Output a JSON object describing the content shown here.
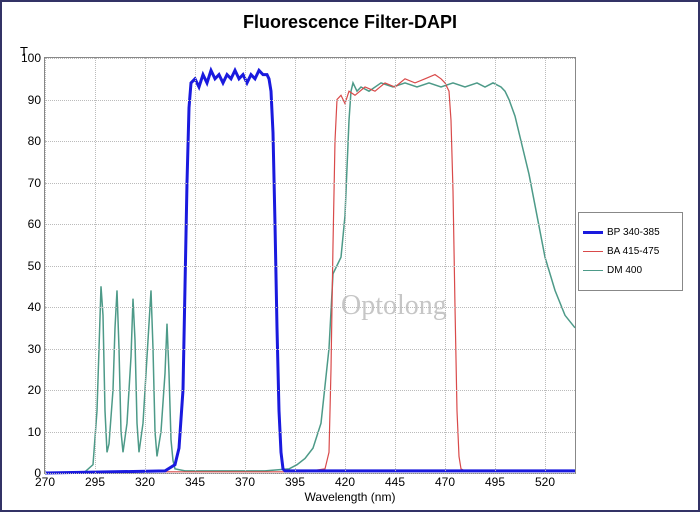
{
  "title": "Fluorescence Filter-DAPI",
  "y_axis_title": "T",
  "x_axis_title": "Wavelength (nm)",
  "watermark": "Optolong",
  "chart_type": "line",
  "background_color": "#ffffff",
  "grid_color": "#bbbbbb",
  "border_color": "#333366",
  "title_fontsize": 18,
  "label_fontsize": 12,
  "x": {
    "min": 270,
    "max": 535,
    "ticks": [
      270,
      295,
      320,
      345,
      370,
      395,
      420,
      445,
      470,
      495,
      520
    ]
  },
  "y": {
    "min": 0,
    "max": 100,
    "ticks": [
      0,
      10,
      20,
      30,
      40,
      50,
      60,
      70,
      80,
      90,
      100
    ]
  },
  "legend": [
    {
      "label": "BP 340-385",
      "color": "#1a1ade",
      "width": 3
    },
    {
      "label": "BA 415-475",
      "color": "#d94a4a",
      "width": 1.2
    },
    {
      "label": "DM 400",
      "color": "#4d9a88",
      "width": 1.5
    }
  ],
  "series": {
    "bp": {
      "color": "#1a1ade",
      "width": 3,
      "points": [
        [
          270,
          0
        ],
        [
          330,
          0.5
        ],
        [
          335,
          2
        ],
        [
          337,
          6
        ],
        [
          339,
          20
        ],
        [
          340,
          45
        ],
        [
          341,
          70
        ],
        [
          342,
          88
        ],
        [
          343,
          94
        ],
        [
          345,
          95
        ],
        [
          347,
          93
        ],
        [
          349,
          96
        ],
        [
          351,
          94
        ],
        [
          353,
          97
        ],
        [
          355,
          95
        ],
        [
          357,
          96
        ],
        [
          359,
          94
        ],
        [
          361,
          96
        ],
        [
          363,
          95
        ],
        [
          365,
          97
        ],
        [
          367,
          95
        ],
        [
          369,
          96
        ],
        [
          371,
          94
        ],
        [
          373,
          96
        ],
        [
          375,
          95
        ],
        [
          377,
          97
        ],
        [
          379,
          96
        ],
        [
          381,
          96
        ],
        [
          382,
          95
        ],
        [
          383,
          92
        ],
        [
          384,
          82
        ],
        [
          385,
          60
        ],
        [
          386,
          35
        ],
        [
          387,
          15
        ],
        [
          388,
          5
        ],
        [
          389,
          1
        ],
        [
          390,
          0.5
        ],
        [
          420,
          0.5
        ],
        [
          480,
          0.5
        ],
        [
          535,
          0.5
        ]
      ]
    },
    "ba": {
      "color": "#d94a4a",
      "width": 1.2,
      "points": [
        [
          270,
          0
        ],
        [
          300,
          0.3
        ],
        [
          400,
          0.3
        ],
        [
          410,
          1
        ],
        [
          412,
          5
        ],
        [
          413,
          25
        ],
        [
          414,
          55
        ],
        [
          415,
          80
        ],
        [
          416,
          90
        ],
        [
          418,
          91
        ],
        [
          420,
          89
        ],
        [
          422,
          92
        ],
        [
          425,
          91
        ],
        [
          430,
          93
        ],
        [
          435,
          92
        ],
        [
          440,
          94
        ],
        [
          445,
          93
        ],
        [
          450,
          95
        ],
        [
          455,
          94
        ],
        [
          460,
          95
        ],
        [
          465,
          96
        ],
        [
          468,
          95
        ],
        [
          470,
          94
        ],
        [
          472,
          92
        ],
        [
          473,
          85
        ],
        [
          474,
          68
        ],
        [
          475,
          40
        ],
        [
          476,
          15
        ],
        [
          477,
          4
        ],
        [
          478,
          1
        ],
        [
          480,
          0.5
        ],
        [
          535,
          0.5
        ]
      ]
    },
    "dm": {
      "color": "#4d9a88",
      "width": 1.5,
      "points": [
        [
          270,
          0
        ],
        [
          290,
          0.3
        ],
        [
          294,
          2
        ],
        [
          296,
          15
        ],
        [
          297,
          30
        ],
        [
          298,
          45
        ],
        [
          299,
          38
        ],
        [
          300,
          15
        ],
        [
          301,
          5
        ],
        [
          302,
          7
        ],
        [
          304,
          20
        ],
        [
          305,
          35
        ],
        [
          306,
          44
        ],
        [
          307,
          30
        ],
        [
          308,
          10
        ],
        [
          309,
          5
        ],
        [
          311,
          12
        ],
        [
          313,
          28
        ],
        [
          314,
          42
        ],
        [
          315,
          32
        ],
        [
          316,
          12
        ],
        [
          317,
          5
        ],
        [
          319,
          12
        ],
        [
          321,
          28
        ],
        [
          323,
          44
        ],
        [
          324,
          30
        ],
        [
          325,
          10
        ],
        [
          326,
          4
        ],
        [
          328,
          10
        ],
        [
          330,
          24
        ],
        [
          331,
          36
        ],
        [
          332,
          24
        ],
        [
          333,
          8
        ],
        [
          334,
          3
        ],
        [
          335,
          1
        ],
        [
          340,
          0.5
        ],
        [
          380,
          0.5
        ],
        [
          392,
          1
        ],
        [
          396,
          2
        ],
        [
          400,
          3.5
        ],
        [
          404,
          6
        ],
        [
          408,
          12
        ],
        [
          412,
          30
        ],
        [
          414,
          48
        ],
        [
          416,
          50
        ],
        [
          418,
          52
        ],
        [
          420,
          62
        ],
        [
          422,
          85
        ],
        [
          423,
          92
        ],
        [
          424,
          94
        ],
        [
          426,
          92
        ],
        [
          428,
          93
        ],
        [
          432,
          92
        ],
        [
          438,
          94
        ],
        [
          444,
          93
        ],
        [
          450,
          94
        ],
        [
          456,
          93
        ],
        [
          462,
          94
        ],
        [
          468,
          93
        ],
        [
          474,
          94
        ],
        [
          480,
          93
        ],
        [
          486,
          94
        ],
        [
          490,
          93
        ],
        [
          494,
          94
        ],
        [
          498,
          93
        ],
        [
          500,
          92
        ],
        [
          502,
          90
        ],
        [
          505,
          86
        ],
        [
          508,
          80
        ],
        [
          512,
          72
        ],
        [
          516,
          62
        ],
        [
          520,
          52
        ],
        [
          525,
          44
        ],
        [
          530,
          38
        ],
        [
          535,
          35
        ]
      ]
    }
  }
}
